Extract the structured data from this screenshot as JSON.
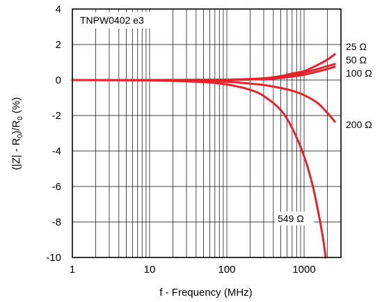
{
  "chart_data": {
    "type": "line",
    "xscale": "log",
    "title": "",
    "xlabel": "f - Frequency (MHz)",
    "ylabel": "(|Z| - R0)/R0 (%)",
    "ylabel_parts": {
      "open": "(|Z| - R",
      "sub1": "0",
      "mid": ")/R",
      "sub2": "0",
      "close": " (%)"
    },
    "annotation": "TNPW0402 e3",
    "xlim": [
      1,
      3000
    ],
    "ylim": [
      -10,
      4
    ],
    "x_ticks": [
      1,
      10,
      100,
      1000
    ],
    "x_tick_labels": [
      "1",
      "10",
      "100",
      "1000"
    ],
    "y_ticks": [
      4,
      2,
      0,
      -2,
      -4,
      -6,
      -8,
      -10
    ],
    "y_tick_labels": [
      "4",
      "2",
      "0",
      "-2",
      "-4",
      "-6",
      "-8",
      "-10"
    ],
    "grid": true,
    "line_color": "#e8232a",
    "series": [
      {
        "name": "25 Ω",
        "x": [
          1,
          10,
          100,
          300,
          500,
          700,
          1000,
          1500,
          2000,
          2500
        ],
        "y": [
          0,
          0,
          0.02,
          0.1,
          0.22,
          0.37,
          0.5,
          0.85,
          1.15,
          1.45
        ]
      },
      {
        "name": "50 Ω",
        "x": [
          1,
          10,
          100,
          300,
          500,
          700,
          1000,
          1500,
          2000,
          2500
        ],
        "y": [
          0,
          0,
          0.02,
          0.08,
          0.18,
          0.28,
          0.42,
          0.62,
          0.78,
          0.9
        ]
      },
      {
        "name": "100 Ω",
        "x": [
          1,
          10,
          100,
          300,
          500,
          700,
          1000,
          1500,
          2000,
          2500
        ],
        "y": [
          0,
          0,
          0,
          0.05,
          0.12,
          0.2,
          0.3,
          0.48,
          0.62,
          0.75
        ]
      },
      {
        "name": "200 Ω",
        "x": [
          1,
          10,
          30,
          100,
          200,
          300,
          500,
          700,
          1000,
          1500,
          2000,
          2500
        ],
        "y": [
          0,
          0,
          -0.03,
          -0.1,
          -0.2,
          -0.28,
          -0.45,
          -0.6,
          -0.85,
          -1.3,
          -1.85,
          -2.35
        ]
      },
      {
        "name": "549 Ω",
        "x": [
          1,
          10,
          20,
          50,
          100,
          200,
          300,
          500,
          700,
          1000,
          1300,
          1600,
          1800,
          1900
        ],
        "y": [
          0,
          -0.02,
          -0.05,
          -0.12,
          -0.25,
          -0.55,
          -0.9,
          -1.7,
          -2.7,
          -4.3,
          -6.0,
          -7.9,
          -9.2,
          -10
        ]
      }
    ]
  }
}
